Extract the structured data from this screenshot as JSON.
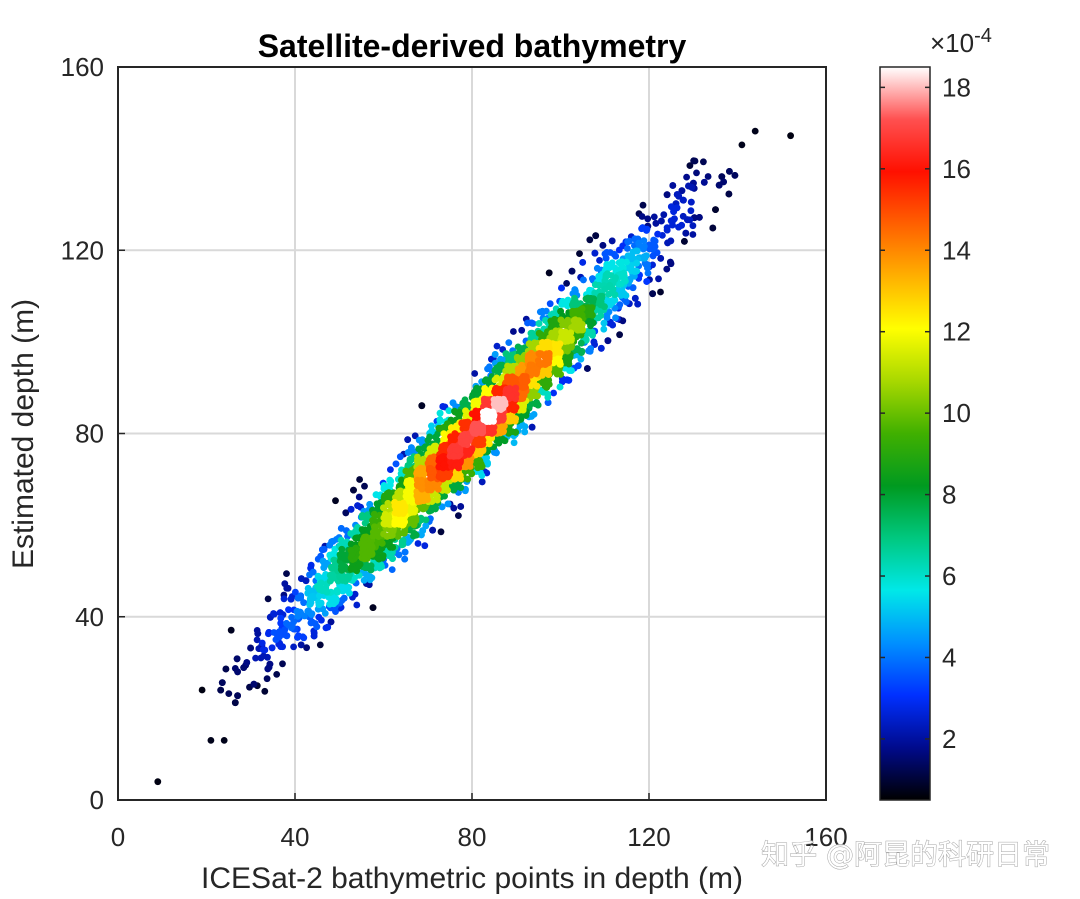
{
  "chart_data": {
    "type": "scatter",
    "title": "Satellite-derived bathymetry",
    "xlabel": "ICESat-2 bathymetric points in depth (m)",
    "ylabel": "Estimated depth (m)",
    "xlim": [
      0,
      160
    ],
    "ylim": [
      0,
      160
    ],
    "xticks": [
      "0",
      "40",
      "80",
      "120",
      "160"
    ],
    "yticks": [
      "0",
      "40",
      "80",
      "120",
      "160"
    ],
    "grid": true,
    "point_coloring": "point density",
    "colorbar": {
      "range": [
        0.5,
        18.5
      ],
      "ticks": [
        "2",
        "4",
        "6",
        "8",
        "10",
        "12",
        "14",
        "16",
        "18"
      ],
      "multiplier_base": "×10",
      "multiplier_exponent": "-4",
      "colormap": [
        "#000000",
        "#000a8c",
        "#0030ff",
        "#0090ff",
        "#00e8e8",
        "#00c880",
        "#009a20",
        "#40b000",
        "#a8d800",
        "#ffff00",
        "#ffb000",
        "#ff6000",
        "#ff1000",
        "#ff5050",
        "#ffffff"
      ]
    },
    "distribution": {
      "relationship": "y ≈ x",
      "x_range": [
        9,
        152
      ],
      "peak_density_at": [
        80,
        80
      ]
    },
    "sample_points": [
      {
        "x": 9,
        "y": 4
      },
      {
        "x": 21,
        "y": 13
      },
      {
        "x": 24,
        "y": 13
      },
      {
        "x": 19,
        "y": 24
      },
      {
        "x": 152,
        "y": 145
      },
      {
        "x": 144,
        "y": 146
      },
      {
        "x": 141,
        "y": 143
      }
    ]
  },
  "watermark": "知乎 @阿昆的科研日常"
}
